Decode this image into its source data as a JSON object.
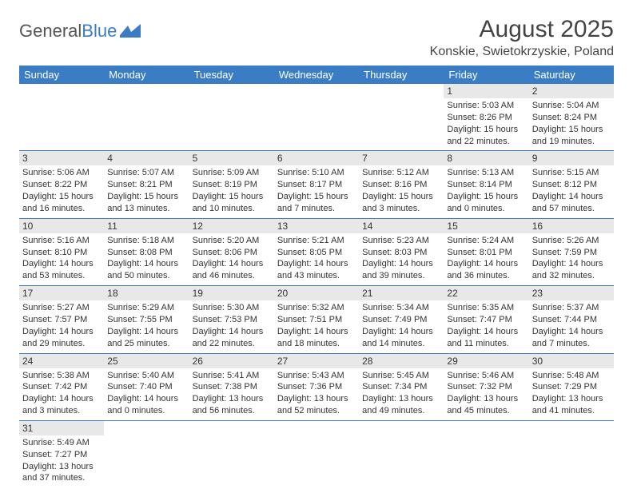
{
  "logo": {
    "text1": "General",
    "text2": "Blue"
  },
  "title": "August 2025",
  "location": "Konskie, Swietokrzyskie, Poland",
  "colors": {
    "header_bg": "#3b7dc4",
    "divider": "#3b7dc4",
    "daynum_bg": "#e8e8e8"
  },
  "weekdays": [
    "Sunday",
    "Monday",
    "Tuesday",
    "Wednesday",
    "Thursday",
    "Friday",
    "Saturday"
  ],
  "weeks": [
    [
      null,
      null,
      null,
      null,
      null,
      {
        "n": "1",
        "sr": "Sunrise: 5:03 AM",
        "ss": "Sunset: 8:26 PM",
        "d1": "Daylight: 15 hours",
        "d2": "and 22 minutes."
      },
      {
        "n": "2",
        "sr": "Sunrise: 5:04 AM",
        "ss": "Sunset: 8:24 PM",
        "d1": "Daylight: 15 hours",
        "d2": "and 19 minutes."
      }
    ],
    [
      {
        "n": "3",
        "sr": "Sunrise: 5:06 AM",
        "ss": "Sunset: 8:22 PM",
        "d1": "Daylight: 15 hours",
        "d2": "and 16 minutes."
      },
      {
        "n": "4",
        "sr": "Sunrise: 5:07 AM",
        "ss": "Sunset: 8:21 PM",
        "d1": "Daylight: 15 hours",
        "d2": "and 13 minutes."
      },
      {
        "n": "5",
        "sr": "Sunrise: 5:09 AM",
        "ss": "Sunset: 8:19 PM",
        "d1": "Daylight: 15 hours",
        "d2": "and 10 minutes."
      },
      {
        "n": "6",
        "sr": "Sunrise: 5:10 AM",
        "ss": "Sunset: 8:17 PM",
        "d1": "Daylight: 15 hours",
        "d2": "and 7 minutes."
      },
      {
        "n": "7",
        "sr": "Sunrise: 5:12 AM",
        "ss": "Sunset: 8:16 PM",
        "d1": "Daylight: 15 hours",
        "d2": "and 3 minutes."
      },
      {
        "n": "8",
        "sr": "Sunrise: 5:13 AM",
        "ss": "Sunset: 8:14 PM",
        "d1": "Daylight: 15 hours",
        "d2": "and 0 minutes."
      },
      {
        "n": "9",
        "sr": "Sunrise: 5:15 AM",
        "ss": "Sunset: 8:12 PM",
        "d1": "Daylight: 14 hours",
        "d2": "and 57 minutes."
      }
    ],
    [
      {
        "n": "10",
        "sr": "Sunrise: 5:16 AM",
        "ss": "Sunset: 8:10 PM",
        "d1": "Daylight: 14 hours",
        "d2": "and 53 minutes."
      },
      {
        "n": "11",
        "sr": "Sunrise: 5:18 AM",
        "ss": "Sunset: 8:08 PM",
        "d1": "Daylight: 14 hours",
        "d2": "and 50 minutes."
      },
      {
        "n": "12",
        "sr": "Sunrise: 5:20 AM",
        "ss": "Sunset: 8:06 PM",
        "d1": "Daylight: 14 hours",
        "d2": "and 46 minutes."
      },
      {
        "n": "13",
        "sr": "Sunrise: 5:21 AM",
        "ss": "Sunset: 8:05 PM",
        "d1": "Daylight: 14 hours",
        "d2": "and 43 minutes."
      },
      {
        "n": "14",
        "sr": "Sunrise: 5:23 AM",
        "ss": "Sunset: 8:03 PM",
        "d1": "Daylight: 14 hours",
        "d2": "and 39 minutes."
      },
      {
        "n": "15",
        "sr": "Sunrise: 5:24 AM",
        "ss": "Sunset: 8:01 PM",
        "d1": "Daylight: 14 hours",
        "d2": "and 36 minutes."
      },
      {
        "n": "16",
        "sr": "Sunrise: 5:26 AM",
        "ss": "Sunset: 7:59 PM",
        "d1": "Daylight: 14 hours",
        "d2": "and 32 minutes."
      }
    ],
    [
      {
        "n": "17",
        "sr": "Sunrise: 5:27 AM",
        "ss": "Sunset: 7:57 PM",
        "d1": "Daylight: 14 hours",
        "d2": "and 29 minutes."
      },
      {
        "n": "18",
        "sr": "Sunrise: 5:29 AM",
        "ss": "Sunset: 7:55 PM",
        "d1": "Daylight: 14 hours",
        "d2": "and 25 minutes."
      },
      {
        "n": "19",
        "sr": "Sunrise: 5:30 AM",
        "ss": "Sunset: 7:53 PM",
        "d1": "Daylight: 14 hours",
        "d2": "and 22 minutes."
      },
      {
        "n": "20",
        "sr": "Sunrise: 5:32 AM",
        "ss": "Sunset: 7:51 PM",
        "d1": "Daylight: 14 hours",
        "d2": "and 18 minutes."
      },
      {
        "n": "21",
        "sr": "Sunrise: 5:34 AM",
        "ss": "Sunset: 7:49 PM",
        "d1": "Daylight: 14 hours",
        "d2": "and 14 minutes."
      },
      {
        "n": "22",
        "sr": "Sunrise: 5:35 AM",
        "ss": "Sunset: 7:47 PM",
        "d1": "Daylight: 14 hours",
        "d2": "and 11 minutes."
      },
      {
        "n": "23",
        "sr": "Sunrise: 5:37 AM",
        "ss": "Sunset: 7:44 PM",
        "d1": "Daylight: 14 hours",
        "d2": "and 7 minutes."
      }
    ],
    [
      {
        "n": "24",
        "sr": "Sunrise: 5:38 AM",
        "ss": "Sunset: 7:42 PM",
        "d1": "Daylight: 14 hours",
        "d2": "and 3 minutes."
      },
      {
        "n": "25",
        "sr": "Sunrise: 5:40 AM",
        "ss": "Sunset: 7:40 PM",
        "d1": "Daylight: 14 hours",
        "d2": "and 0 minutes."
      },
      {
        "n": "26",
        "sr": "Sunrise: 5:41 AM",
        "ss": "Sunset: 7:38 PM",
        "d1": "Daylight: 13 hours",
        "d2": "and 56 minutes."
      },
      {
        "n": "27",
        "sr": "Sunrise: 5:43 AM",
        "ss": "Sunset: 7:36 PM",
        "d1": "Daylight: 13 hours",
        "d2": "and 52 minutes."
      },
      {
        "n": "28",
        "sr": "Sunrise: 5:45 AM",
        "ss": "Sunset: 7:34 PM",
        "d1": "Daylight: 13 hours",
        "d2": "and 49 minutes."
      },
      {
        "n": "29",
        "sr": "Sunrise: 5:46 AM",
        "ss": "Sunset: 7:32 PM",
        "d1": "Daylight: 13 hours",
        "d2": "and 45 minutes."
      },
      {
        "n": "30",
        "sr": "Sunrise: 5:48 AM",
        "ss": "Sunset: 7:29 PM",
        "d1": "Daylight: 13 hours",
        "d2": "and 41 minutes."
      }
    ],
    [
      {
        "n": "31",
        "sr": "Sunrise: 5:49 AM",
        "ss": "Sunset: 7:27 PM",
        "d1": "Daylight: 13 hours",
        "d2": "and 37 minutes."
      },
      null,
      null,
      null,
      null,
      null,
      null
    ]
  ]
}
